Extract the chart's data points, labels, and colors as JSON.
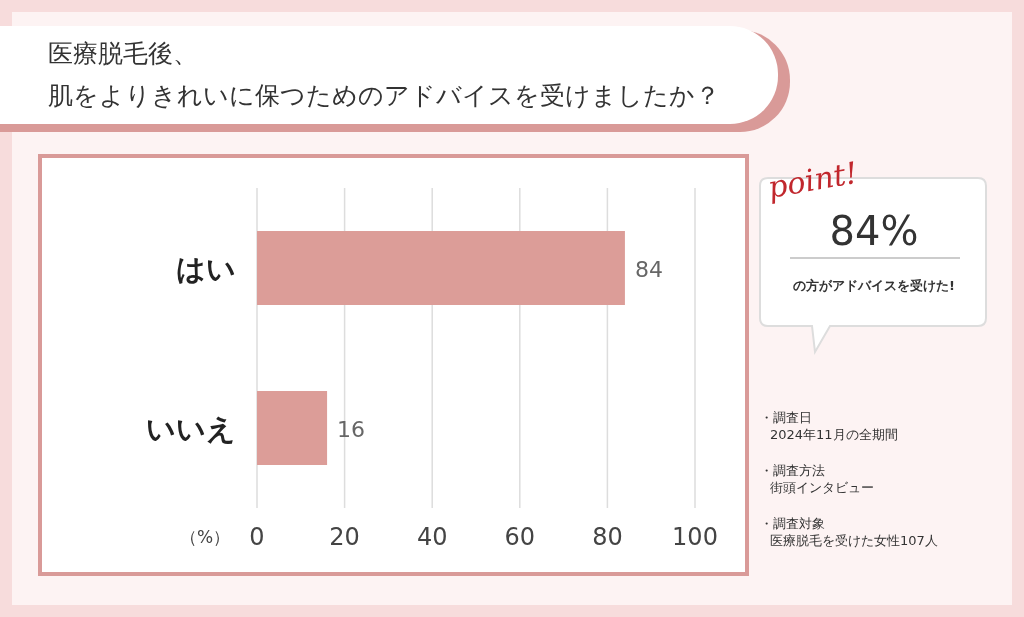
{
  "chart_data": {
    "type": "bar",
    "orientation": "horizontal",
    "title": "医療脱毛後、肌をよりきれいに保つためのアドバイスを受けましたか？",
    "categories": [
      "はい",
      "いいえ"
    ],
    "values": [
      84,
      16
    ],
    "color": "#dc9d98",
    "data_labels": true,
    "xlabel": "（%）",
    "xlim": [
      0,
      100
    ],
    "xticks": [
      0,
      20,
      40,
      60,
      80,
      100
    ],
    "grid": "x",
    "annotations": [
      "point!",
      "84%",
      "の方がアドバイスを受けた!",
      "・調査日",
      "2024年11月の全期間",
      "・調査方法",
      "街頭インタビュー",
      "・調査対象",
      "医療脱毛を受けた女性107人"
    ]
  }
}
